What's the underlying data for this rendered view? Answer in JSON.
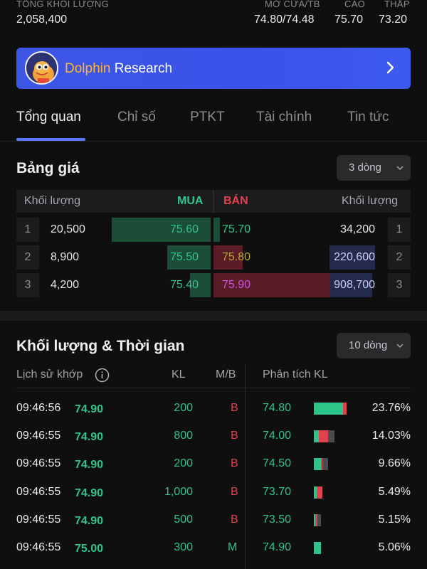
{
  "stats": {
    "volume_label": "TỔNG KHỐI LƯỢNG",
    "volume_value": "2,058,400",
    "open_label": "MỞ CỬA/TB",
    "open_value": "74.80/74.48",
    "high_label": "CAO",
    "high_value": "75.70",
    "low_label": "THẤP",
    "low_value": "73.20"
  },
  "banner": {
    "title_part1": "Dolphin",
    "title_part2": "Research"
  },
  "tabs": [
    "Tổng quan",
    "Chỉ số",
    "PTKT",
    "Tài chính",
    "Tin tức"
  ],
  "price_board": {
    "title": "Bảng giá",
    "rows_option": "3 dòng",
    "header_vol_left": "Khối lượng",
    "header_buy": "MUA",
    "header_sell": "BÁN",
    "header_vol_right": "Khối lượng",
    "rows": [
      {
        "idx": "1",
        "buy_vol": "20,500",
        "buy_price": "75.60",
        "sell_price": "75.70",
        "sell_vol": "34,200",
        "idx_right": "1"
      },
      {
        "idx": "2",
        "buy_vol": "8,900",
        "buy_price": "75.50",
        "sell_price": "75.80",
        "sell_vol": "220,600",
        "idx_right": "2"
      },
      {
        "idx": "3",
        "buy_vol": "4,200",
        "buy_price": "75.40",
        "sell_price": "75.90",
        "sell_vol": "908,700",
        "idx_right": "3"
      }
    ],
    "buy_fill": [
      0.48,
      0.21,
      0.1
    ],
    "sell_fill": [
      0.03,
      0.14,
      0.62
    ]
  },
  "trades": {
    "title": "Khối lượng & Thời gian",
    "rows_option": "10 dòng",
    "header_history": "Lịch sử khớp",
    "header_kl": "KL",
    "header_mb": "M/B",
    "header_analysis": "Phân tích KL",
    "rows": [
      {
        "time": "09:46:56",
        "price": "74.90",
        "kl": "200",
        "mb": "B",
        "level": "74.80",
        "pct": "23.76%"
      },
      {
        "time": "09:46:55",
        "price": "74.90",
        "kl": "800",
        "mb": "B",
        "level": "74.00",
        "pct": "14.03%"
      },
      {
        "time": "09:46:55",
        "price": "74.90",
        "kl": "200",
        "mb": "B",
        "level": "74.50",
        "pct": "9.66%"
      },
      {
        "time": "09:46:55",
        "price": "74.90",
        "kl": "1,000",
        "mb": "B",
        "level": "73.70",
        "pct": "5.49%"
      },
      {
        "time": "09:46:55",
        "price": "74.90",
        "kl": "500",
        "mb": "B",
        "level": "73.50",
        "pct": "5.15%"
      },
      {
        "time": "09:46:55",
        "price": "75.00",
        "kl": "300",
        "mb": "M",
        "level": "74.90",
        "pct": "5.06%"
      }
    ],
    "bar_shares": [
      {
        "buy": 0.9,
        "sell": 0.1,
        "other": 0.0
      },
      {
        "buy": 0.25,
        "sell": 0.45,
        "other": 0.3
      },
      {
        "buy": 0.5,
        "sell": 0.1,
        "other": 0.4
      },
      {
        "buy": 0.3,
        "sell": 0.7,
        "other": 0.0
      },
      {
        "buy": 0.2,
        "sell": 0.3,
        "other": 0.5
      },
      {
        "buy": 1.0,
        "sell": 0.0,
        "other": 0.0
      }
    ]
  },
  "colors": {
    "buy": "#2ec48a",
    "buy_bar": "#1b4d37",
    "sell": "#e0424f",
    "sell_bar": "#5a1d25",
    "purple": "#d050e0",
    "ref": "#b3a63a",
    "blue_text": "#c5d0ff",
    "sell_vol_bar": "#262a4a"
  }
}
